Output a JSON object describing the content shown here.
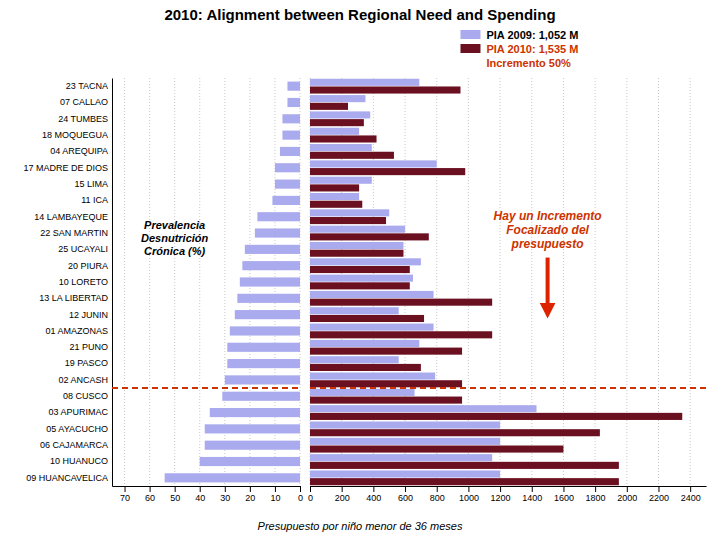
{
  "chart_data": [
    {
      "type": "bar",
      "orientation": "horizontal",
      "title": "2010: Alignment between Regional Need and Spending",
      "xlabel": "Prevalencia\nDesnutrición\nCrónica  (%)",
      "categories": [
        "23 TACNA",
        "07 CALLAO",
        "24 TUMBES",
        "18 MOQUEGUA",
        "04 AREQUIPA",
        "17 MADRE DE DIOS",
        "15 LIMA",
        "11 ICA",
        "14 LAMBAYEQUE",
        "22 SAN MARTIN",
        "25 UCAYALI",
        "20 PIURA",
        "10 LORETO",
        "13 LA LIBERTAD",
        "12 JUNIN",
        "01 AMAZONAS",
        "21 PUNO",
        "19 PASCO",
        "02 ANCASH",
        "08 CUSCO",
        "03 APURIMAC",
        "05 AYACUCHO",
        "06 CAJAMARCA",
        "10 HUANUCO",
        "09 HUANCAVELICA"
      ],
      "values": [
        5,
        5,
        7,
        7,
        8,
        10,
        10,
        11,
        17,
        18,
        22,
        23,
        24,
        25,
        26,
        28,
        29,
        29,
        30,
        31,
        36,
        38,
        38,
        40,
        54
      ],
      "color": "#aaaaee",
      "xlim": [
        75,
        0
      ],
      "xticks": [
        0,
        10,
        20,
        30,
        40,
        50,
        60,
        70
      ],
      "grid": true,
      "divider_after": "02 ANCASH"
    },
    {
      "type": "bar",
      "orientation": "horizontal",
      "xlabel": "Presupuesto por niño menor de 36 meses",
      "categories": [
        "23 TACNA",
        "07 CALLAO",
        "24 TUMBES",
        "18 MOQUEGUA",
        "04 AREQUIPA",
        "17 MADRE DE DIOS",
        "15 LIMA",
        "11 ICA",
        "14 LAMBAYEQUE",
        "22 SAN MARTIN",
        "25 UCAYALI",
        "20 PIURA",
        "10 LORETO",
        "13 LA LIBERTAD",
        "12 JUNIN",
        "01 AMAZONAS",
        "21 PUNO",
        "19 PASCO",
        "02 ANCASH",
        "08 CUSCO",
        "03 APURIMAC",
        "05 AYACUCHO",
        "06 CAJAMARCA",
        "10 HUANUCO",
        "09 HUANCAVELICA"
      ],
      "series": [
        {
          "name": "PIA 2009: 1,052 M",
          "color": "#aaaaee",
          "values": [
            690,
            350,
            380,
            310,
            390,
            800,
            390,
            310,
            500,
            600,
            590,
            700,
            650,
            780,
            560,
            780,
            690,
            560,
            790,
            660,
            1430,
            1200,
            1200,
            1150,
            1200
          ]
        },
        {
          "name": "PIA 2010: 1,535 M",
          "color": "#6B1020",
          "values": [
            950,
            240,
            340,
            420,
            530,
            980,
            310,
            330,
            480,
            750,
            590,
            630,
            630,
            1150,
            720,
            1150,
            960,
            700,
            960,
            960,
            2350,
            1830,
            1600,
            1950,
            1950
          ]
        }
      ],
      "xlim": [
        0,
        2500
      ],
      "xticks": [
        0,
        200,
        400,
        600,
        800,
        1000,
        1200,
        1400,
        1600,
        1800,
        2000,
        2200,
        2400
      ],
      "grid": true,
      "tick_labels": "x",
      "legend": "top",
      "annotations": [
        "Incremento 50%",
        "Hay un Incremento\nFocalizado del\npresupuesto"
      ]
    }
  ]
}
